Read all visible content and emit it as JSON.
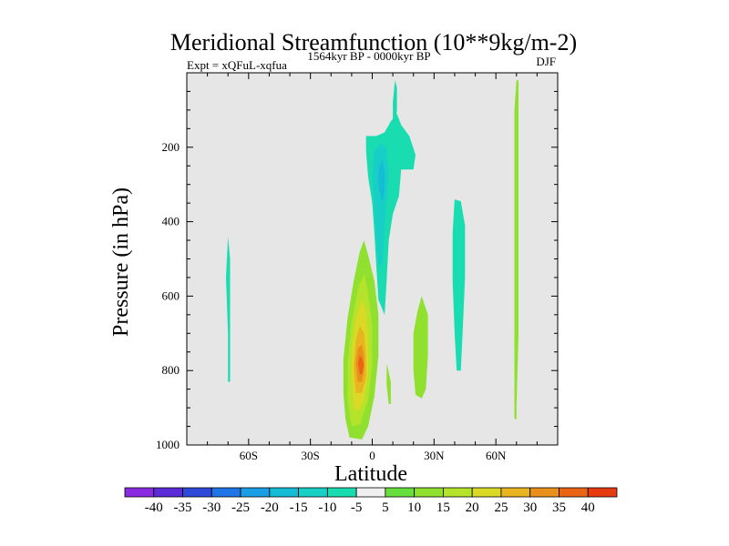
{
  "chart_data": {
    "type": "contour",
    "title": "Meridional Streamfunction (10**9kg/m-2)",
    "subtitle_left": "Expt = xQFuL-xqfua",
    "subtitle_center": "1564kyr BP - 0000kyr BP",
    "subtitle_right": "DJF",
    "xlabel": "Latitude",
    "ylabel": "Pressure (in hPa)",
    "xlim": [
      -90,
      90
    ],
    "ylim": [
      1000,
      0
    ],
    "x_major_ticks": [
      {
        "value": -60,
        "label": "60S"
      },
      {
        "value": -30,
        "label": "30S"
      },
      {
        "value": 0,
        "label": "0"
      },
      {
        "value": 30,
        "label": "30N"
      },
      {
        "value": 60,
        "label": "60N"
      }
    ],
    "y_major_ticks": [
      {
        "value": 200,
        "label": "200"
      },
      {
        "value": 400,
        "label": "400"
      },
      {
        "value": 600,
        "label": "600"
      },
      {
        "value": 800,
        "label": "800"
      },
      {
        "value": 1000,
        "label": "1000"
      }
    ],
    "colorbar": {
      "labels": [
        "-40",
        "-35",
        "-30",
        "-25",
        "-20",
        "-15",
        "-10",
        "-5",
        "5",
        "10",
        "15",
        "20",
        "25",
        "30",
        "35",
        "40"
      ],
      "colors": [
        "#8a2be2",
        "#5a2bd6",
        "#2f49d8",
        "#1f74e6",
        "#1a9fe6",
        "#14bcd6",
        "#18cfc6",
        "#19dcb0",
        "#efefef",
        "#67df3c",
        "#8fe02f",
        "#b5e22a",
        "#d9d926",
        "#e8b41f",
        "#e98f1b",
        "#ea6416",
        "#e83a10"
      ]
    },
    "regions": [
      {
        "name": "positive-cell-eq-lower",
        "level": 10,
        "points": [
          [
            -11,
            980
          ],
          [
            -13,
            930
          ],
          [
            -14,
            860
          ],
          [
            -14,
            770
          ],
          [
            -12,
            660
          ],
          [
            -9,
            560
          ],
          [
            -6,
            480
          ],
          [
            -4,
            450
          ],
          [
            -2,
            490
          ],
          [
            1,
            560
          ],
          [
            3,
            650
          ],
          [
            3,
            760
          ],
          [
            1,
            870
          ],
          [
            -2,
            950
          ],
          [
            -5,
            985
          ]
        ]
      },
      {
        "name": "positive-cell-eq-lower",
        "level": 15,
        "points": [
          [
            -10,
            950
          ],
          [
            -12,
            880
          ],
          [
            -12,
            780
          ],
          [
            -10,
            670
          ],
          [
            -7,
            580
          ],
          [
            -4,
            540
          ],
          [
            -2,
            590
          ],
          [
            0,
            680
          ],
          [
            0,
            790
          ],
          [
            -2,
            880
          ],
          [
            -6,
            945
          ]
        ]
      },
      {
        "name": "positive-cell-eq-lower",
        "level": 20,
        "points": [
          [
            -9,
            900
          ],
          [
            -10,
            820
          ],
          [
            -10,
            740
          ],
          [
            -8,
            660
          ],
          [
            -5,
            610
          ],
          [
            -3,
            640
          ],
          [
            -2,
            720
          ],
          [
            -2,
            810
          ],
          [
            -4,
            880
          ],
          [
            -7,
            910
          ]
        ]
      },
      {
        "name": "positive-cell-eq-lower",
        "level": 25,
        "points": [
          [
            -8,
            860
          ],
          [
            -9,
            790
          ],
          [
            -8,
            720
          ],
          [
            -6,
            680
          ],
          [
            -4,
            700
          ],
          [
            -3,
            760
          ],
          [
            -3,
            820
          ],
          [
            -5,
            860
          ]
        ]
      },
      {
        "name": "positive-cell-eq-lower",
        "level": 30,
        "points": [
          [
            -7,
            830
          ],
          [
            -8,
            780
          ],
          [
            -7,
            740
          ],
          [
            -5,
            730
          ],
          [
            -4,
            760
          ],
          [
            -4,
            800
          ],
          [
            -5,
            830
          ]
        ]
      },
      {
        "name": "positive-cell-eq-lower",
        "level": 35,
        "points": [
          [
            -6,
            810
          ],
          [
            -7,
            780
          ],
          [
            -6,
            760
          ],
          [
            -5,
            765
          ],
          [
            -4,
            785
          ],
          [
            -5,
            810
          ]
        ]
      },
      {
        "name": "negative-cell-upper",
        "level": -5,
        "points": [
          [
            -3,
            170
          ],
          [
            2,
            170
          ],
          [
            6,
            160
          ],
          [
            9,
            130
          ],
          [
            12,
            110
          ],
          [
            14,
            140
          ],
          [
            18,
            170
          ],
          [
            21,
            220
          ],
          [
            20,
            260
          ],
          [
            14,
            260
          ],
          [
            13,
            330
          ],
          [
            10,
            380
          ],
          [
            8,
            450
          ],
          [
            7,
            560
          ],
          [
            6,
            650
          ],
          [
            3,
            610
          ],
          [
            2,
            520
          ],
          [
            1,
            430
          ],
          [
            0,
            350
          ],
          [
            -2,
            280
          ],
          [
            -3,
            210
          ]
        ]
      },
      {
        "name": "negative-cell-upper",
        "level": -10,
        "points": [
          [
            1,
            210
          ],
          [
            4,
            190
          ],
          [
            7,
            200
          ],
          [
            8,
            270
          ],
          [
            7,
            340
          ],
          [
            6,
            420
          ],
          [
            5,
            510
          ],
          [
            3,
            520
          ],
          [
            2,
            450
          ],
          [
            1,
            360
          ],
          [
            0,
            280
          ]
        ]
      },
      {
        "name": "negative-cell-upper",
        "level": -15,
        "points": [
          [
            3,
            260
          ],
          [
            5,
            230
          ],
          [
            6,
            270
          ],
          [
            6,
            320
          ],
          [
            5,
            350
          ],
          [
            4,
            330
          ],
          [
            3,
            300
          ]
        ]
      },
      {
        "name": "negative-cell-upper",
        "level": -5,
        "points": [
          [
            11,
            20
          ],
          [
            12,
            40
          ],
          [
            12,
            100
          ],
          [
            11,
            150
          ],
          [
            10,
            140
          ],
          [
            10,
            80
          ]
        ]
      },
      {
        "name": "negative-cell-upper",
        "level": -5,
        "points": [
          [
            40,
            340
          ],
          [
            43,
            345
          ],
          [
            45,
            410
          ],
          [
            45,
            550
          ],
          [
            44,
            680
          ],
          [
            43,
            800
          ],
          [
            41,
            800
          ],
          [
            40,
            700
          ],
          [
            39,
            560
          ],
          [
            39,
            430
          ]
        ]
      },
      {
        "name": "negative-cell-upper",
        "level": -5,
        "points": [
          [
            -70,
            440
          ],
          [
            -69,
            500
          ],
          [
            -69,
            650
          ],
          [
            -69,
            830
          ],
          [
            -70,
            830
          ],
          [
            -70,
            700
          ],
          [
            -71,
            550
          ]
        ]
      },
      {
        "name": "positive-cell-nh",
        "level": 10,
        "points": [
          [
            24,
            600
          ],
          [
            27,
            650
          ],
          [
            27,
            760
          ],
          [
            26,
            850
          ],
          [
            24,
            875
          ],
          [
            21,
            865
          ],
          [
            20,
            800
          ],
          [
            20,
            700
          ],
          [
            22,
            640
          ]
        ]
      },
      {
        "name": "positive-cell-nh",
        "level": 10,
        "points": [
          [
            7,
            780
          ],
          [
            9,
            830
          ],
          [
            9,
            890
          ],
          [
            8,
            890
          ],
          [
            7,
            840
          ]
        ]
      },
      {
        "name": "positive-cell-nh",
        "level": 10,
        "points": [
          [
            70,
            20
          ],
          [
            71,
            20
          ],
          [
            71,
            150
          ],
          [
            71,
            400
          ],
          [
            71,
            700
          ],
          [
            70,
            900
          ],
          [
            70,
            930
          ],
          [
            69,
            930
          ],
          [
            69,
            700
          ],
          [
            69,
            300
          ],
          [
            69,
            100
          ]
        ]
      }
    ]
  }
}
